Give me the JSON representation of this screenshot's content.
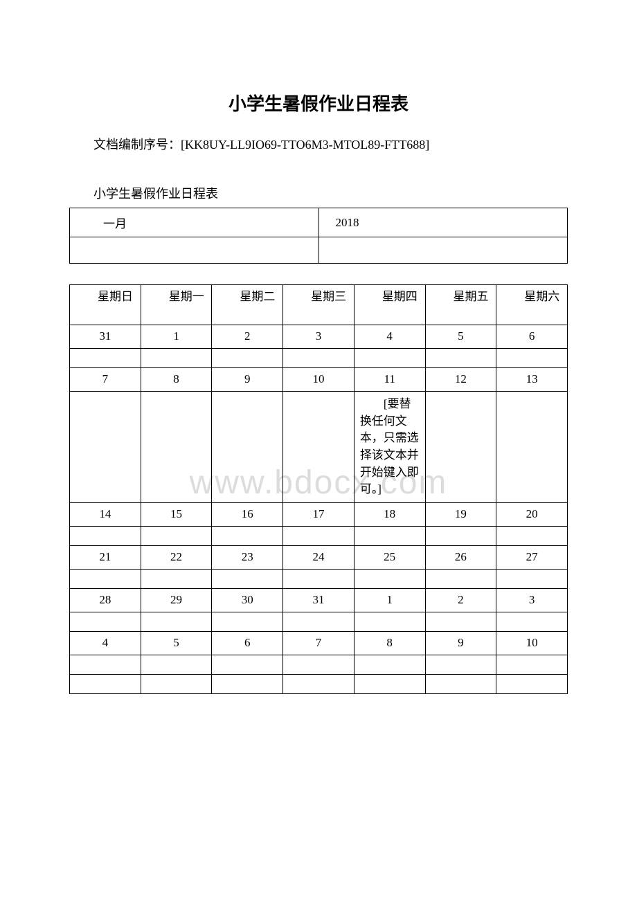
{
  "title": "小学生暑假作业日程表",
  "docnum_label": "文档编制序号：",
  "docnum_value": "[KK8UY-LL9IO69-TTO6M3-MTOL89-FTT688]",
  "subtitle": "小学生暑假作业日程表",
  "header_table": {
    "month": "一月",
    "year": "2018"
  },
  "watermark_text": "www.bdocx.com",
  "calendar": {
    "weekdays": [
      "星期日",
      "星期一",
      "星期二",
      "星期三",
      "星期四",
      "星期五",
      "星期六"
    ],
    "note_text": "[要替换任何文本，只需选择该文本并开始键入即可。]",
    "rows": [
      [
        "31",
        "1",
        "2",
        "3",
        "4",
        "5",
        "6"
      ],
      [
        "7",
        "8",
        "9",
        "10",
        "11",
        "12",
        "13"
      ],
      [
        "14",
        "15",
        "16",
        "17",
        "18",
        "19",
        "20"
      ],
      [
        "21",
        "22",
        "23",
        "24",
        "25",
        "26",
        "27"
      ],
      [
        "28",
        "29",
        "30",
        "31",
        "1",
        "2",
        "3"
      ],
      [
        "4",
        "5",
        "6",
        "7",
        "8",
        "9",
        "10"
      ]
    ]
  },
  "colors": {
    "text": "#000000",
    "background": "#ffffff",
    "border": "#000000",
    "watermark": "#dcdcdc"
  },
  "typography": {
    "body_font": "SimSun",
    "title_size_pt": 20,
    "body_size_pt": 13
  }
}
